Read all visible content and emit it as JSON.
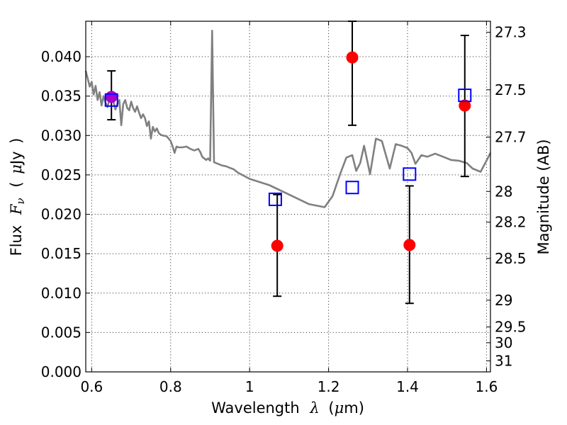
{
  "chart_data": {
    "type": "scatter",
    "xlabel_text": "Wavelength",
    "xlabel_symbol": "λ",
    "xlabel_unit_open": "(",
    "xlabel_unit_mu": "μ",
    "xlabel_unit_rest": "m)",
    "ylabel_text": "Flux",
    "ylabel_symbol": "F",
    "ylabel_sub": "ν",
    "ylabel_unit_open": "(",
    "ylabel_unit_mu": "μ",
    "ylabel_unit_rest": "Jy",
    "ylabel_unit_close": ")",
    "y2label": "Magnitude (AB)",
    "xlim": [
      0.585,
      1.61
    ],
    "ylim": [
      0.0,
      0.0445
    ],
    "grid": true,
    "x_ticks": [
      {
        "value": 0.6,
        "label": "0.6"
      },
      {
        "value": 0.8,
        "label": "0.8"
      },
      {
        "value": 1.0,
        "label": "1"
      },
      {
        "value": 1.2,
        "label": "1.2"
      },
      {
        "value": 1.4,
        "label": "1.4"
      },
      {
        "value": 1.6,
        "label": "1.6"
      }
    ],
    "y_ticks": [
      {
        "value": 0.0,
        "label": "0.000"
      },
      {
        "value": 0.005,
        "label": "0.005"
      },
      {
        "value": 0.01,
        "label": "0.010"
      },
      {
        "value": 0.015,
        "label": "0.015"
      },
      {
        "value": 0.02,
        "label": "0.020"
      },
      {
        "value": 0.025,
        "label": "0.025"
      },
      {
        "value": 0.03,
        "label": "0.030"
      },
      {
        "value": 0.035,
        "label": "0.035"
      },
      {
        "value": 0.04,
        "label": "0.040"
      }
    ],
    "y2_ticks": [
      {
        "flux": 0.0431,
        "label": "27.3"
      },
      {
        "flux": 0.0358,
        "label": "27.5"
      },
      {
        "flux": 0.0298,
        "label": "27.7"
      },
      {
        "flux": 0.0229,
        "label": "28"
      },
      {
        "flux": 0.019,
        "label": "28.2"
      },
      {
        "flux": 0.0144,
        "label": "28.5"
      },
      {
        "flux": 0.0091,
        "label": "29"
      },
      {
        "flux": 0.0057,
        "label": "29.5"
      },
      {
        "flux": 0.0037,
        "label": "30"
      },
      {
        "flux": 0.0014,
        "label": "31"
      }
    ],
    "model_spectrum": {
      "color": "#808080",
      "points": [
        [
          0.585,
          0.0382
        ],
        [
          0.59,
          0.0372
        ],
        [
          0.595,
          0.0362
        ],
        [
          0.6,
          0.0368
        ],
        [
          0.605,
          0.0352
        ],
        [
          0.61,
          0.0363
        ],
        [
          0.615,
          0.0345
        ],
        [
          0.62,
          0.0355
        ],
        [
          0.625,
          0.0338
        ],
        [
          0.63,
          0.035
        ],
        [
          0.635,
          0.0342
        ],
        [
          0.64,
          0.0336
        ],
        [
          0.645,
          0.0345
        ],
        [
          0.65,
          0.0352
        ],
        [
          0.655,
          0.0343
        ],
        [
          0.66,
          0.0333
        ],
        [
          0.665,
          0.034
        ],
        [
          0.67,
          0.0345
        ],
        [
          0.675,
          0.0313
        ],
        [
          0.68,
          0.034
        ],
        [
          0.685,
          0.0345
        ],
        [
          0.69,
          0.0335
        ],
        [
          0.695,
          0.0332
        ],
        [
          0.7,
          0.0343
        ],
        [
          0.705,
          0.0335
        ],
        [
          0.71,
          0.033
        ],
        [
          0.715,
          0.0337
        ],
        [
          0.72,
          0.0329
        ],
        [
          0.725,
          0.0322
        ],
        [
          0.73,
          0.0327
        ],
        [
          0.735,
          0.0322
        ],
        [
          0.74,
          0.0312
        ],
        [
          0.745,
          0.0318
        ],
        [
          0.75,
          0.0296
        ],
        [
          0.755,
          0.0311
        ],
        [
          0.76,
          0.0305
        ],
        [
          0.765,
          0.0309
        ],
        [
          0.77,
          0.0303
        ],
        [
          0.775,
          0.0301
        ],
        [
          0.78,
          0.03
        ],
        [
          0.79,
          0.0299
        ],
        [
          0.8,
          0.0293
        ],
        [
          0.805,
          0.0286
        ],
        [
          0.81,
          0.0278
        ],
        [
          0.815,
          0.0286
        ],
        [
          0.82,
          0.0285
        ],
        [
          0.83,
          0.0285
        ],
        [
          0.84,
          0.0286
        ],
        [
          0.85,
          0.0283
        ],
        [
          0.86,
          0.0281
        ],
        [
          0.87,
          0.0283
        ],
        [
          0.875,
          0.0279
        ],
        [
          0.88,
          0.0273
        ],
        [
          0.89,
          0.0269
        ],
        [
          0.895,
          0.0271
        ],
        [
          0.9,
          0.0268
        ],
        [
          0.905,
          0.0433
        ],
        [
          0.91,
          0.0266
        ],
        [
          0.92,
          0.0264
        ],
        [
          0.93,
          0.0262
        ],
        [
          0.94,
          0.0261
        ],
        [
          0.95,
          0.0259
        ],
        [
          0.96,
          0.0257
        ],
        [
          0.97,
          0.0253
        ],
        [
          1.0,
          0.0245
        ],
        [
          1.05,
          0.0237
        ],
        [
          1.1,
          0.0225
        ],
        [
          1.15,
          0.0213
        ],
        [
          1.19,
          0.0209
        ],
        [
          1.21,
          0.0223
        ],
        [
          1.23,
          0.0252
        ],
        [
          1.245,
          0.0272
        ],
        [
          1.26,
          0.0275
        ],
        [
          1.27,
          0.0255
        ],
        [
          1.28,
          0.0265
        ],
        [
          1.29,
          0.0287
        ],
        [
          1.305,
          0.0251
        ],
        [
          1.32,
          0.0296
        ],
        [
          1.335,
          0.0293
        ],
        [
          1.355,
          0.0258
        ],
        [
          1.37,
          0.0289
        ],
        [
          1.385,
          0.0287
        ],
        [
          1.4,
          0.0284
        ],
        [
          1.41,
          0.0278
        ],
        [
          1.42,
          0.0264
        ],
        [
          1.435,
          0.0275
        ],
        [
          1.45,
          0.0273
        ],
        [
          1.47,
          0.0277
        ],
        [
          1.49,
          0.0273
        ],
        [
          1.51,
          0.0269
        ],
        [
          1.53,
          0.0268
        ],
        [
          1.55,
          0.0265
        ],
        [
          1.565,
          0.0258
        ],
        [
          1.585,
          0.0254
        ],
        [
          1.6,
          0.0268
        ],
        [
          1.61,
          0.0278
        ]
      ]
    },
    "observed_points": {
      "color": "#ff0000",
      "points": [
        {
          "x": 1.07,
          "y": 0.016,
          "yerr_low": 0.0096,
          "yerr_high": 0.0225
        },
        {
          "x": 1.26,
          "y": 0.0399,
          "yerr_low": 0.0313,
          "yerr_high": 0.0445
        },
        {
          "x": 1.405,
          "y": 0.0161,
          "yerr_low": 0.0087,
          "yerr_high": 0.0236
        },
        {
          "x": 1.545,
          "y": 0.0338,
          "yerr_low": 0.0248,
          "yerr_high": 0.0427
        }
      ]
    },
    "highlight_point": {
      "color": "#aa00cc",
      "x": 0.65,
      "y": 0.0349,
      "yerr_low": 0.032,
      "yerr_high": 0.0382
    },
    "model_band_points": {
      "color": "#0000ff",
      "points": [
        {
          "x": 0.65,
          "y": 0.0345
        },
        {
          "x": 1.065,
          "y": 0.0219
        },
        {
          "x": 1.26,
          "y": 0.0234
        },
        {
          "x": 1.405,
          "y": 0.0251
        },
        {
          "x": 1.545,
          "y": 0.0351
        }
      ]
    }
  }
}
